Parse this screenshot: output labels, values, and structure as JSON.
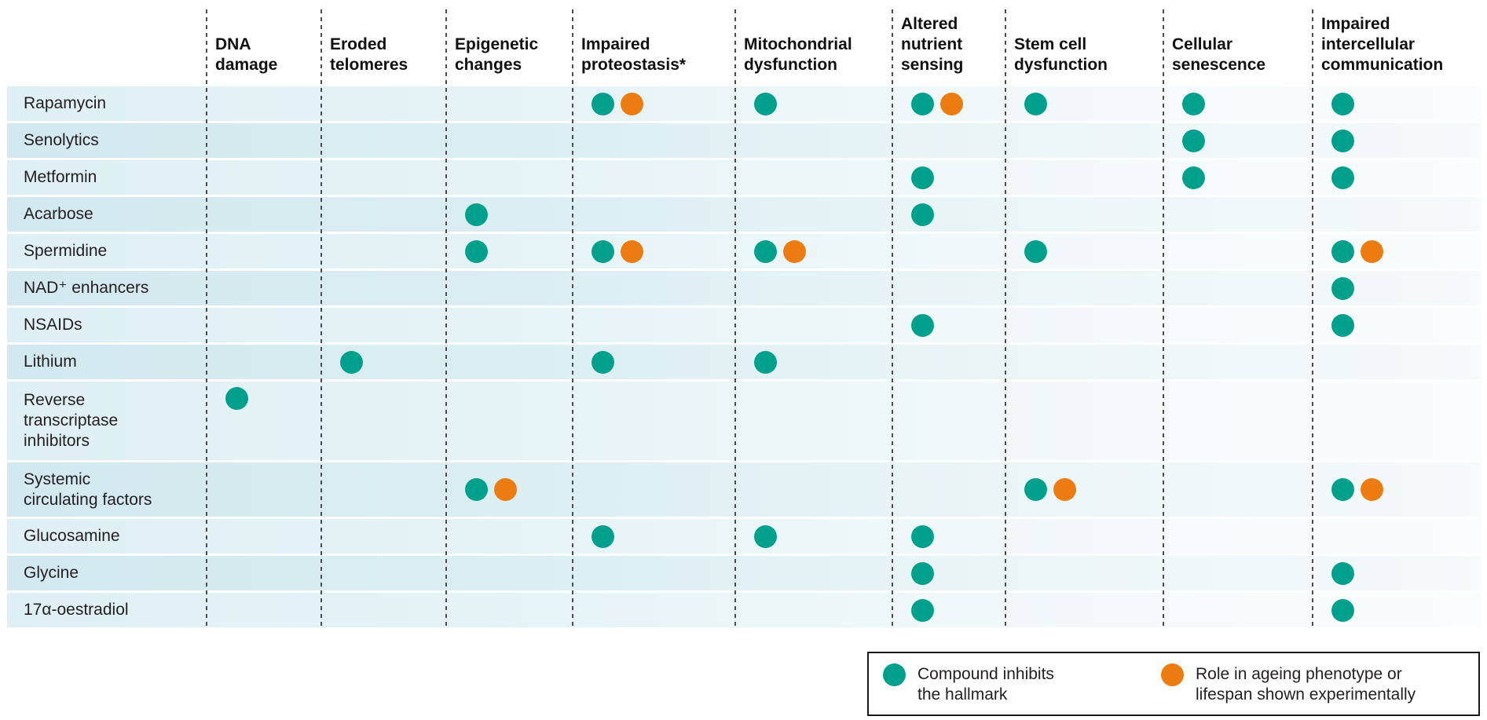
{
  "chart_data": {
    "type": "table",
    "description_note": "Dot matrix: compounds (rows) versus hallmarks of ageing (columns)",
    "columns": [
      {
        "label": "DNA damage",
        "lines": [
          "DNA",
          "damage"
        ]
      },
      {
        "label": "Eroded telomeres",
        "lines": [
          "Eroded",
          "telomeres"
        ]
      },
      {
        "label": "Epigenetic changes",
        "lines": [
          "Epigenetic",
          "changes"
        ]
      },
      {
        "label": "Impaired proteostasis*",
        "lines": [
          "Impaired",
          "proteostasis*"
        ]
      },
      {
        "label": "Mitochondrial dysfunction",
        "lines": [
          "Mitochondrial",
          "dysfunction"
        ]
      },
      {
        "label": "Altered nutrient sensing",
        "lines": [
          "Altered",
          "nutrient",
          "sensing"
        ]
      },
      {
        "label": "Stem cell dysfunction",
        "lines": [
          "Stem cell",
          "dysfunction"
        ]
      },
      {
        "label": "Cellular senescence",
        "lines": [
          "Cellular",
          "senescence"
        ]
      },
      {
        "label": "Impaired intercellular communication",
        "lines": [
          "Impaired",
          "intercellular",
          "communication"
        ]
      }
    ],
    "mark_codes": {
      "T": "Compound inhibits the hallmark",
      "O": "Role in ageing phenotype or lifespan shown experimentally"
    },
    "rows": [
      {
        "label": "Rapamycin",
        "lines": [
          "Rapamycin"
        ],
        "marks": [
          "",
          "",
          "",
          "TO",
          "T",
          "TO",
          "T",
          "T",
          "T"
        ]
      },
      {
        "label": "Senolytics",
        "lines": [
          "Senolytics"
        ],
        "marks": [
          "",
          "",
          "",
          "",
          "",
          "",
          "",
          "T",
          "T"
        ]
      },
      {
        "label": "Metformin",
        "lines": [
          "Metformin"
        ],
        "marks": [
          "",
          "",
          "",
          "",
          "",
          "T",
          "",
          "T",
          "T"
        ]
      },
      {
        "label": "Acarbose",
        "lines": [
          "Acarbose"
        ],
        "marks": [
          "",
          "",
          "T",
          "",
          "",
          "T",
          "",
          "",
          ""
        ]
      },
      {
        "label": "Spermidine",
        "lines": [
          "Spermidine"
        ],
        "marks": [
          "",
          "",
          "T",
          "TO",
          "TO",
          "",
          "T",
          "",
          "TO"
        ]
      },
      {
        "label": "NAD⁺ enhancers",
        "lines": [
          "NAD⁺ enhancers"
        ],
        "marks": [
          "",
          "",
          "",
          "",
          "",
          "",
          "",
          "",
          "T"
        ]
      },
      {
        "label": "NSAIDs",
        "lines": [
          "NSAIDs"
        ],
        "marks": [
          "",
          "",
          "",
          "",
          "",
          "T",
          "",
          "",
          "T"
        ]
      },
      {
        "label": "Lithium",
        "lines": [
          "Lithium"
        ],
        "marks": [
          "",
          "T",
          "",
          "T",
          "T",
          "",
          "",
          "",
          ""
        ]
      },
      {
        "label": "Reverse transcriptase inhibitors",
        "lines": [
          "Reverse",
          "transcriptase",
          "inhibitors"
        ],
        "marks": [
          "T",
          "",
          "",
          "",
          "",
          "",
          "",
          "",
          ""
        ]
      },
      {
        "label": "Systemic circulating factors",
        "lines": [
          "Systemic",
          "circulating factors"
        ],
        "marks": [
          "",
          "",
          "TO",
          "",
          "",
          "",
          "TO",
          "",
          "TO"
        ]
      },
      {
        "label": "Glucosamine",
        "lines": [
          "Glucosamine"
        ],
        "marks": [
          "",
          "",
          "",
          "T",
          "T",
          "T",
          "",
          "",
          ""
        ]
      },
      {
        "label": "Glycine",
        "lines": [
          "Glycine"
        ],
        "marks": [
          "",
          "",
          "",
          "",
          "",
          "T",
          "",
          "",
          "T"
        ]
      },
      {
        "label": "17α-oestradiol",
        "lines": [
          "17α-oestradiol"
        ],
        "marks": [
          "",
          "",
          "",
          "",
          "",
          "T",
          "",
          "",
          "T"
        ]
      }
    ]
  },
  "legend": {
    "items": [
      {
        "color_name": "teal",
        "label": "Compound inhibits\nthe hallmark"
      },
      {
        "color_name": "orange",
        "label": "Role in ageing phenotype or\nlifespan shown experimentally"
      }
    ]
  },
  "colors": {
    "teal": "#00a18c",
    "orange": "#ec7c10"
  }
}
